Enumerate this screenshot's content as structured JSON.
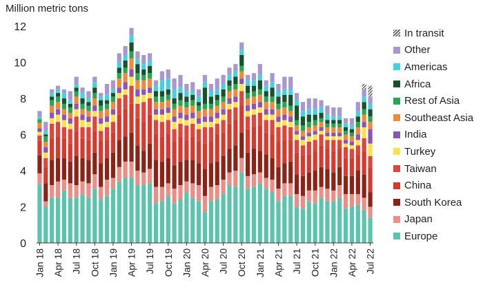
{
  "chart_data": {
    "type": "bar",
    "stacked": true,
    "ylabel": "Million  metric tons",
    "ylim": [
      0,
      12
    ],
    "yticks": [
      "0",
      "2",
      "4",
      "6",
      "8",
      "10",
      "12"
    ],
    "xtick_labels": [
      "Jan 18",
      "Apr 18",
      "Jul 18",
      "Oct 18",
      "Jan 19",
      "Apr 19",
      "Jul 19",
      "Oct 19",
      "Jan 20",
      "Apr 20",
      "Jul 20",
      "Oct 20",
      "Jan 21",
      "Apr 21",
      "Jul 21",
      "Oct 21",
      "Jan 22",
      "Apr 22",
      "Jul 22"
    ],
    "categories": [
      "Jan 18",
      "Feb 18",
      "Mar 18",
      "Apr 18",
      "May 18",
      "Jun 18",
      "Jul 18",
      "Aug 18",
      "Sep 18",
      "Oct 18",
      "Nov 18",
      "Dec 18",
      "Jan 19",
      "Feb 19",
      "Mar 19",
      "Apr 19",
      "May 19",
      "Jun 19",
      "Jul 19",
      "Aug 19",
      "Sep 19",
      "Oct 19",
      "Nov 19",
      "Dec 19",
      "Jan 20",
      "Feb 20",
      "Mar 20",
      "Apr 20",
      "May 20",
      "Jun 20",
      "Jul 20",
      "Aug 20",
      "Sep 20",
      "Oct 20",
      "Nov 20",
      "Dec 20",
      "Jan 21",
      "Feb 21",
      "Mar 21",
      "Apr 21",
      "May 21",
      "Jun 21",
      "Jul 21",
      "Aug 21",
      "Sep 21",
      "Oct 21",
      "Nov 21",
      "Dec 21",
      "Jan 22",
      "Feb 22",
      "Mar 22",
      "Apr 22",
      "May 22",
      "Jun 22",
      "Jul 22"
    ],
    "series": [
      {
        "name": "Europe",
        "color": "#5cc4ad",
        "values": [
          3.25,
          2.0,
          2.5,
          2.5,
          2.9,
          2.5,
          2.5,
          2.7,
          2.5,
          3.0,
          2.4,
          2.6,
          3.0,
          3.4,
          3.6,
          3.6,
          3.2,
          3.2,
          3.3,
          2.2,
          2.3,
          2.6,
          2.2,
          2.4,
          2.8,
          2.5,
          2.3,
          1.7,
          2.3,
          2.4,
          2.7,
          3.2,
          3.1,
          3.9,
          3.0,
          3.1,
          3.3,
          3.0,
          2.8,
          2.3,
          2.6,
          2.6,
          2.0,
          1.9,
          2.3,
          2.2,
          2.5,
          2.3,
          2.3,
          2.5,
          1.9,
          2.0,
          2.1,
          1.8,
          1.4
        ]
      },
      {
        "name": "Japan",
        "color": "#eb8e86",
        "values": [
          0.6,
          0.3,
          0.7,
          0.9,
          0.6,
          0.8,
          0.7,
          0.7,
          0.8,
          0.8,
          0.7,
          0.9,
          0.6,
          0.8,
          0.9,
          0.9,
          0.8,
          0.7,
          0.8,
          0.9,
          0.8,
          0.7,
          0.8,
          0.8,
          0.6,
          0.8,
          0.9,
          0.9,
          0.8,
          0.8,
          0.8,
          0.7,
          0.9,
          0.8,
          0.7,
          0.7,
          0.6,
          0.6,
          0.7,
          0.7,
          0.7,
          0.7,
          0.7,
          0.7,
          0.6,
          0.7,
          0.6,
          0.7,
          0.6,
          0.7,
          0.8,
          0.7,
          0.6,
          0.7,
          0.6
        ]
      },
      {
        "name": "South Korea",
        "color": "#8b2417",
        "values": [
          1.0,
          1.0,
          1.4,
          1.3,
          1.2,
          1.2,
          1.6,
          1.3,
          1.3,
          1.2,
          1.3,
          1.2,
          1.4,
          1.5,
          1.4,
          1.6,
          1.4,
          1.2,
          1.4,
          1.5,
          1.4,
          1.4,
          1.3,
          1.3,
          1.2,
          1.3,
          1.2,
          1.5,
          1.3,
          1.3,
          1.3,
          1.3,
          1.4,
          1.4,
          1.3,
          1.4,
          1.2,
          1.3,
          1.2,
          1.2,
          1.1,
          1.2,
          1.1,
          1.1,
          1.0,
          1.1,
          1.1,
          1.1,
          1.0,
          1.0,
          1.0,
          1.0,
          1.3,
          1.3,
          0.8
        ]
      },
      {
        "name": "China",
        "color": "#d63a2e",
        "values": [
          0.8,
          0.9,
          1.2,
          1.2,
          1.1,
          1.0,
          1.4,
          1.1,
          1.1,
          1.2,
          1.2,
          1.0,
          1.1,
          1.4,
          1.5,
          1.6,
          1.5,
          1.6,
          1.6,
          1.4,
          1.4,
          1.3,
          1.3,
          1.4,
          1.1,
          1.3,
          1.2,
          1.4,
          1.2,
          1.5,
          1.3,
          1.4,
          1.4,
          1.5,
          1.3,
          1.2,
          1.4,
          1.2,
          1.3,
          1.4,
          1.3,
          1.2,
          1.2,
          1.1,
          1.0,
          1.1,
          1.2,
          1.1,
          1.2,
          1.0,
          1.0,
          1.0,
          0.9,
          1.3,
          1.4
        ]
      },
      {
        "name": "Taiwan",
        "color": "#e0453c",
        "values": [
          0.3,
          0.5,
          0.8,
          0.8,
          0.6,
          0.8,
          0.8,
          0.6,
          0.7,
          0.8,
          0.6,
          0.7,
          0.6,
          0.9,
          0.8,
          1.0,
          0.8,
          1.1,
          0.9,
          0.8,
          0.8,
          0.8,
          0.7,
          0.7,
          0.8,
          0.7,
          0.7,
          0.9,
          0.8,
          0.6,
          0.7,
          0.8,
          0.7,
          0.8,
          0.7,
          0.7,
          0.7,
          0.7,
          0.8,
          0.8,
          0.8,
          0.7,
          0.7,
          0.6,
          0.7,
          0.6,
          0.6,
          0.5,
          0.6,
          0.5,
          0.6,
          0.5,
          0.5,
          0.7,
          0.6
        ]
      },
      {
        "name": "Turkey",
        "color": "#f9e24a",
        "values": [
          0.2,
          0.3,
          0.3,
          0.4,
          0.4,
          0.3,
          0.4,
          0.4,
          0.3,
          0.3,
          0.4,
          0.3,
          0.4,
          0.3,
          0.3,
          0.5,
          0.4,
          0.4,
          0.3,
          0.3,
          0.4,
          0.4,
          0.4,
          0.3,
          0.3,
          0.3,
          0.3,
          0.3,
          0.3,
          0.3,
          0.3,
          0.3,
          0.3,
          0.4,
          0.3,
          0.3,
          0.3,
          0.3,
          0.3,
          0.3,
          0.3,
          0.3,
          0.3,
          0.3,
          0.3,
          0.3,
          0.2,
          0.2,
          0.2,
          0.2,
          0.2,
          0.2,
          0.3,
          0.6,
          0.7
        ]
      },
      {
        "name": "India",
        "color": "#8c55b4",
        "values": [
          0.2,
          0.3,
          0.3,
          0.3,
          0.3,
          0.3,
          0.3,
          0.3,
          0.3,
          0.3,
          0.3,
          0.3,
          0.3,
          0.3,
          0.4,
          0.4,
          0.4,
          0.3,
          0.3,
          0.3,
          0.3,
          0.3,
          0.3,
          0.3,
          0.3,
          0.3,
          0.3,
          0.3,
          0.3,
          0.3,
          0.3,
          0.3,
          0.3,
          0.3,
          0.3,
          0.3,
          0.3,
          0.3,
          0.3,
          0.3,
          0.3,
          0.3,
          0.2,
          0.2,
          0.2,
          0.2,
          0.2,
          0.2,
          0.2,
          0.2,
          0.2,
          0.2,
          0.3,
          0.3,
          0.8
        ]
      },
      {
        "name": "Southeast Asia",
        "color": "#ef8a3c",
        "values": [
          0.3,
          0.3,
          0.4,
          0.4,
          0.3,
          0.3,
          0.4,
          0.3,
          0.3,
          0.4,
          0.4,
          0.4,
          0.4,
          0.5,
          0.5,
          0.6,
          0.5,
          0.5,
          0.5,
          0.4,
          0.4,
          0.4,
          0.4,
          0.4,
          0.4,
          0.4,
          0.4,
          0.4,
          0.4,
          0.4,
          0.4,
          0.4,
          0.4,
          0.4,
          0.4,
          0.4,
          0.4,
          0.4,
          0.4,
          0.4,
          0.4,
          0.3,
          0.3,
          0.3,
          0.3,
          0.3,
          0.3,
          0.3,
          0.3,
          0.3,
          0.3,
          0.3,
          0.4,
          0.4,
          0.4
        ]
      },
      {
        "name": "Rest of Asia",
        "color": "#27a653",
        "values": [
          0.2,
          0.3,
          0.3,
          0.3,
          0.3,
          0.3,
          0.3,
          0.3,
          0.3,
          0.3,
          0.3,
          0.3,
          0.3,
          0.3,
          0.3,
          0.4,
          0.4,
          0.3,
          0.3,
          0.3,
          0.3,
          0.3,
          0.3,
          0.3,
          0.3,
          0.3,
          0.3,
          0.3,
          0.3,
          0.3,
          0.3,
          0.3,
          0.3,
          0.3,
          0.3,
          0.3,
          0.3,
          0.3,
          0.3,
          0.3,
          0.3,
          0.3,
          0.3,
          0.3,
          0.3,
          0.3,
          0.2,
          0.2,
          0.2,
          0.2,
          0.2,
          0.2,
          0.3,
          0.3,
          0.3
        ]
      },
      {
        "name": "Africa",
        "color": "#16522e",
        "values": [
          0.0,
          0.1,
          0.2,
          0.2,
          0.3,
          0.2,
          0.2,
          0.3,
          0.2,
          0.3,
          0.3,
          0.2,
          0.2,
          0.3,
          0.4,
          0.5,
          0.5,
          0.3,
          0.4,
          0.3,
          0.3,
          0.3,
          0.3,
          0.4,
          0.3,
          0.3,
          0.2,
          0.9,
          0.4,
          0.3,
          0.4,
          0.3,
          0.4,
          0.6,
          0.4,
          0.3,
          0.5,
          0.3,
          0.5,
          0.4,
          0.4,
          0.6,
          0.8,
          0.5,
          0.4,
          0.3,
          0.3,
          0.2,
          0.2,
          0.2,
          0.2,
          0.2,
          0.3,
          0.4,
          0.4
        ]
      },
      {
        "name": "Americas",
        "color": "#48d0e0",
        "values": [
          0.1,
          0.2,
          0.2,
          0.2,
          0.3,
          0.2,
          0.2,
          0.3,
          0.2,
          0.3,
          0.2,
          0.3,
          0.2,
          0.3,
          0.3,
          0.4,
          0.3,
          0.3,
          0.3,
          0.3,
          0.6,
          0.6,
          0.5,
          0.3,
          0.3,
          0.2,
          0.3,
          0.3,
          0.3,
          0.3,
          0.3,
          0.3,
          0.3,
          0.3,
          0.3,
          0.3,
          0.3,
          0.3,
          0.3,
          0.3,
          0.3,
          0.3,
          0.3,
          0.3,
          0.3,
          0.3,
          0.3,
          0.3,
          0.2,
          0.2,
          0.2,
          0.2,
          0.3,
          0.3,
          0.3
        ]
      },
      {
        "name": "Other",
        "color": "#a998cf",
        "values": [
          0.35,
          0.5,
          0.2,
          0.2,
          0.2,
          0.5,
          0.4,
          0.3,
          0.4,
          0.3,
          0.2,
          0.6,
          0.5,
          0.5,
          0.5,
          0.4,
          0.4,
          0.5,
          0.4,
          0.3,
          0.5,
          0.5,
          0.6,
          0.7,
          0.4,
          0.5,
          0.4,
          0.4,
          0.4,
          0.6,
          0.5,
          0.4,
          0.4,
          0.4,
          0.3,
          0.4,
          0.6,
          0.3,
          0.5,
          0.4,
          0.7,
          0.7,
          0.4,
          0.5,
          0.6,
          0.6,
          0.4,
          0.5,
          0.5,
          0.5,
          0.3,
          0.4,
          0.5,
          0.4,
          0.4
        ]
      },
      {
        "name": "In transit",
        "color": "#555555",
        "hatched": true,
        "values": [
          0,
          0,
          0,
          0,
          0,
          0,
          0,
          0,
          0,
          0,
          0,
          0,
          0,
          0,
          0,
          0,
          0,
          0,
          0,
          0,
          0,
          0,
          0,
          0,
          0,
          0,
          0,
          0,
          0,
          0,
          0,
          0,
          0,
          0,
          0,
          0,
          0,
          0,
          0,
          0,
          0,
          0,
          0,
          0,
          0,
          0,
          0,
          0,
          0,
          0,
          0,
          0,
          0,
          0.3,
          0.6
        ]
      }
    ],
    "legend": [
      "In transit",
      "Other",
      "Americas",
      "Africa",
      "Rest of Asia",
      "Southeast Asia",
      "India",
      "Turkey",
      "Taiwan",
      "China",
      "South Korea",
      "Japan",
      "Europe"
    ],
    "legend_position": "right"
  }
}
